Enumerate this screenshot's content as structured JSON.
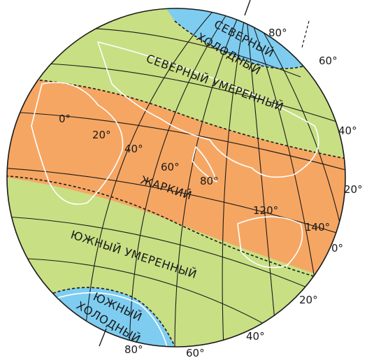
{
  "colors": {
    "hot_zone": "#f6a663",
    "temperate_zone": "#c8df84",
    "cold_zone": "#7ecdf0",
    "grid_lines": "#1a1a1a",
    "coastline": "#ffffff"
  },
  "zones": {
    "north_cold": [
      "СЕВЕРНЫЙ",
      "ХОЛОДНЫЙ"
    ],
    "north_temperate": "СЕВЕРНЫЙ УМЕРЕННЫЙ",
    "hot": "ЖАРКИЙ",
    "south_temperate": "ЮЖНЫЙ УМЕРЕННЫЙ",
    "south_cold": [
      "ЮЖНЫЙ",
      "ХОЛОДНЫЙ"
    ]
  },
  "latitude_labels": [
    "80°",
    "60°",
    "40°",
    "20°",
    "0°",
    "20°",
    "40°",
    "60°",
    "80°"
  ],
  "longitude_labels": [
    "0°",
    "20°",
    "40°",
    "60°",
    "80°",
    "120°",
    "140°"
  ]
}
